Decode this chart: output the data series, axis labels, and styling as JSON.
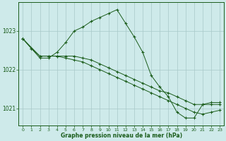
{
  "title": "Graphe pression niveau de la mer (hPa)",
  "background_color": "#ceeaea",
  "line_color": "#1a5c1a",
  "grid_color": "#a8c8c8",
  "xlim": [
    -0.5,
    23.5
  ],
  "ylim": [
    1020.55,
    1023.75
  ],
  "yticks": [
    1021,
    1022,
    1023
  ],
  "xticks": [
    0,
    1,
    2,
    3,
    4,
    5,
    6,
    7,
    8,
    9,
    10,
    11,
    12,
    13,
    14,
    15,
    16,
    17,
    18,
    19,
    20,
    21,
    22,
    23
  ],
  "series1": {
    "x": [
      0,
      1,
      2,
      3,
      4,
      5,
      6,
      7,
      8,
      9,
      10,
      11,
      12,
      13,
      14,
      15,
      16,
      17,
      18,
      19,
      20,
      21,
      22,
      23
    ],
    "y": [
      1022.8,
      1022.55,
      1022.3,
      1022.3,
      1022.45,
      1022.7,
      1023.0,
      1023.1,
      1023.25,
      1023.35,
      1023.45,
      1023.55,
      1023.2,
      1022.85,
      1022.45,
      1021.85,
      1021.55,
      1021.3,
      1020.9,
      1020.75,
      1020.75,
      1021.1,
      1021.1,
      1021.1
    ]
  },
  "series2": {
    "x": [
      0,
      1,
      2,
      3,
      4,
      5,
      6,
      7,
      8,
      9,
      10,
      11,
      12,
      13,
      14,
      15,
      16,
      17,
      18,
      19,
      20,
      21,
      22,
      23
    ],
    "y": [
      1022.8,
      1022.55,
      1022.35,
      1022.35,
      1022.35,
      1022.35,
      1022.35,
      1022.3,
      1022.25,
      1022.15,
      1022.05,
      1021.95,
      1021.85,
      1021.75,
      1021.65,
      1021.55,
      1021.45,
      1021.4,
      1021.3,
      1021.2,
      1021.1,
      1021.1,
      1021.15,
      1021.15
    ]
  },
  "series3": {
    "x": [
      0,
      2,
      3,
      4,
      5,
      6,
      7,
      8,
      9,
      10,
      11,
      12,
      13,
      14,
      15,
      16,
      17,
      18,
      19,
      20,
      21,
      22,
      23
    ],
    "y": [
      1022.8,
      1022.35,
      1022.35,
      1022.35,
      1022.3,
      1022.25,
      1022.2,
      1022.1,
      1022.0,
      1021.9,
      1021.8,
      1021.7,
      1021.6,
      1021.5,
      1021.4,
      1021.3,
      1021.2,
      1021.1,
      1021.0,
      1020.9,
      1020.85,
      1020.9,
      1020.95
    ]
  }
}
